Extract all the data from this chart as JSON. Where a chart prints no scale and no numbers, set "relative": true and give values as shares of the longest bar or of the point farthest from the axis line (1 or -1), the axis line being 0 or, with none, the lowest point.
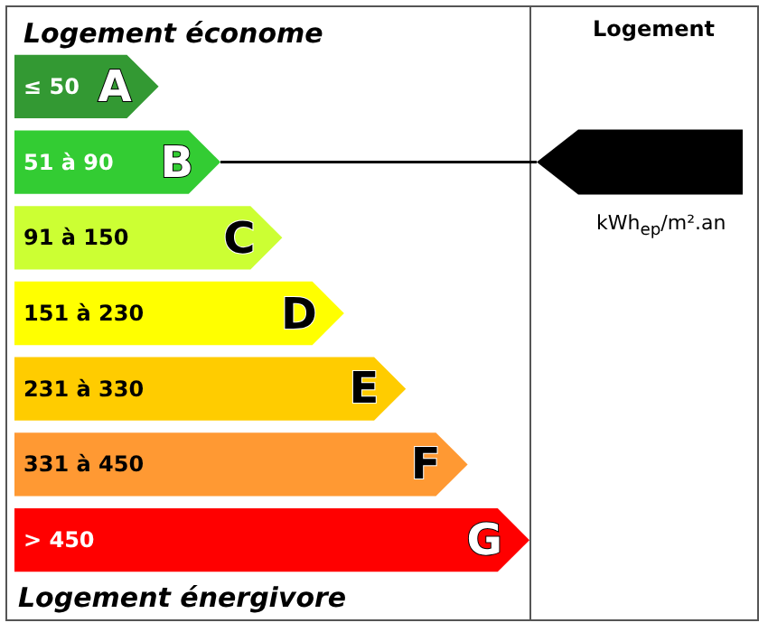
{
  "chart_data": {
    "type": "bar",
    "orientation": "horizontal",
    "relative": true,
    "title": "Logement économe",
    "categories": [
      "≤ 50",
      "51 à 90",
      "91 à 150",
      "151 à 230",
      "231 à 330",
      "331 à 450",
      "> 450"
    ],
    "values": [
      0.28,
      0.4,
      0.52,
      0.64,
      0.76,
      0.88,
      1
    ],
    "colors": [
      "#339933",
      "#33cc33",
      "#ccff33",
      "#ffff00",
      "#ffcc00",
      "#ff9933",
      "#ff0000"
    ],
    "annotations": [
      {
        "text": "A",
        "y": "≤ 50"
      },
      {
        "text": "B",
        "y": "51 à 90"
      },
      {
        "text": "C",
        "y": "91 à 150"
      },
      {
        "text": "D",
        "y": "151 à 230"
      },
      {
        "text": "E",
        "y": "231 à 330"
      },
      {
        "text": "F",
        "y": "331 à 450"
      },
      {
        "text": "G",
        "y": "> 450"
      },
      "Logement énergivore",
      "Logement",
      "kWh$_{ep}$/m².an"
    ]
  }
}
